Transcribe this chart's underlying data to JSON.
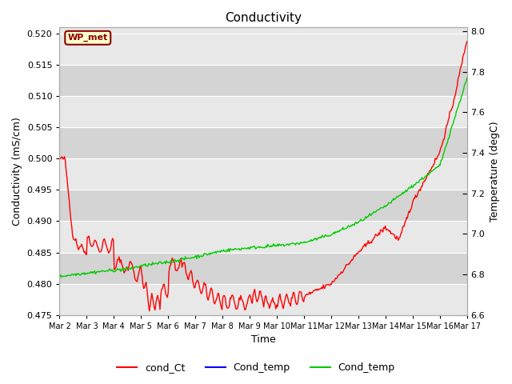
{
  "title": "Conductivity",
  "xlabel": "Time",
  "ylabel_left": "Conductivity (mS/cm)",
  "ylabel_right": "Temperature (degC)",
  "ylim_left": [
    0.475,
    0.521
  ],
  "ylim_right": [
    6.6,
    8.02
  ],
  "yticks_left": [
    0.475,
    0.48,
    0.485,
    0.49,
    0.495,
    0.5,
    0.505,
    0.51,
    0.515,
    0.52
  ],
  "yticks_right": [
    6.6,
    6.8,
    7.0,
    7.2,
    7.4,
    7.6,
    7.8,
    8.0
  ],
  "fig_bg": "#ffffff",
  "band_colors": [
    "#e8e8e8",
    "#d4d4d4"
  ],
  "grid_line_color": "#ffffff",
  "annotation_text": "WP_met",
  "annotation_bg": "#ffffcc",
  "annotation_border": "#8b0000",
  "legend_colors": [
    "#ff0000",
    "#0000ff",
    "#00cc00"
  ],
  "legend_labels": [
    "cond_Ct",
    "Cond_temp",
    "Cond_temp"
  ],
  "line_width": 1.0,
  "num_points": 500,
  "xmin": 0,
  "xmax": 15
}
